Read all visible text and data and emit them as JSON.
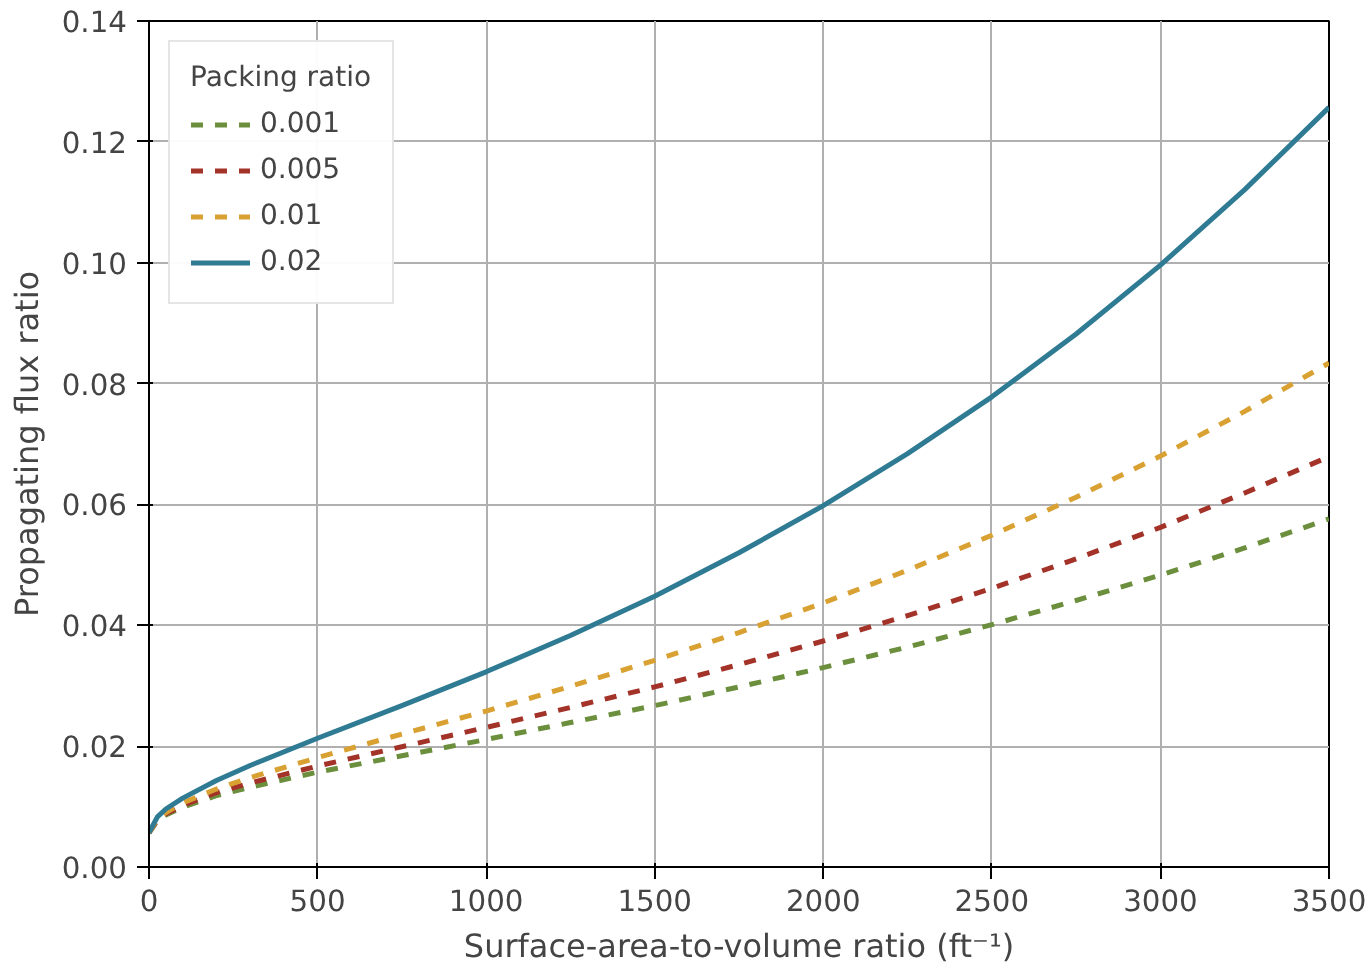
{
  "chart_data": {
    "type": "line",
    "xlabel": "Surface-area-to-volume ratio (ft⁻¹)",
    "ylabel": "Propagating flux ratio",
    "legend_title": "Packing ratio",
    "legend": "top left",
    "grid": true,
    "marker": "none",
    "x": [
      0,
      25,
      50,
      100,
      200,
      300,
      500,
      750,
      1000,
      1250,
      1500,
      1750,
      2000,
      2250,
      2500,
      2750,
      3000,
      3250,
      3500
    ],
    "xlim": [
      0,
      3500
    ],
    "xticks": [
      0,
      500,
      1000,
      1500,
      2000,
      2500,
      3000,
      3500
    ],
    "ylim": [
      0,
      0.14
    ],
    "yticks": [
      {
        "value": 0,
        "label": "0.00"
      },
      {
        "value": 0.02,
        "label": "0.02"
      },
      {
        "value": 0.04,
        "label": "0.04"
      },
      {
        "value": 0.06,
        "label": "0.06"
      },
      {
        "value": 0.08,
        "label": "0.08"
      },
      {
        "value": 0.1,
        "label": "0.10"
      },
      {
        "value": 0.12,
        "label": "0.12"
      },
      {
        "value": 0.14,
        "label": "0.14"
      }
    ],
    "series": [
      {
        "name": "0.001",
        "color": "#6b8f3c",
        "line_style": "dashed",
        "values": [
          0.0056,
          0.0077,
          0.0086,
          0.0099,
          0.0118,
          0.0132,
          0.0157,
          0.0184,
          0.0211,
          0.0239,
          0.0267,
          0.0298,
          0.033,
          0.0364,
          0.0401,
          0.0441,
          0.0483,
          0.0528,
          0.0576
        ]
      },
      {
        "name": "0.005",
        "color": "#a33228",
        "line_style": "dashed",
        "values": [
          0.0057,
          0.0078,
          0.0088,
          0.0102,
          0.0123,
          0.0139,
          0.0167,
          0.0199,
          0.0231,
          0.0264,
          0.0298,
          0.0335,
          0.0374,
          0.0416,
          0.0461,
          0.051,
          0.0562,
          0.0619,
          0.0679
        ]
      },
      {
        "name": "0.01",
        "color": "#d9a032",
        "line_style": "dashed",
        "values": [
          0.0057,
          0.008,
          0.009,
          0.0106,
          0.0129,
          0.0148,
          0.0181,
          0.022,
          0.0258,
          0.0299,
          0.0342,
          0.0388,
          0.0437,
          0.0491,
          0.0549,
          0.0612,
          0.068,
          0.0754,
          0.0834
        ]
      },
      {
        "name": "0.02",
        "color": "#2f7b93",
        "line_style": "solid",
        "values": [
          0.0057,
          0.0083,
          0.0096,
          0.0114,
          0.0143,
          0.0168,
          0.0213,
          0.0267,
          0.0323,
          0.0383,
          0.0448,
          0.052,
          0.0598,
          0.0684,
          0.0778,
          0.0882,
          0.0996,
          0.1121,
          0.1257
        ]
      }
    ]
  }
}
